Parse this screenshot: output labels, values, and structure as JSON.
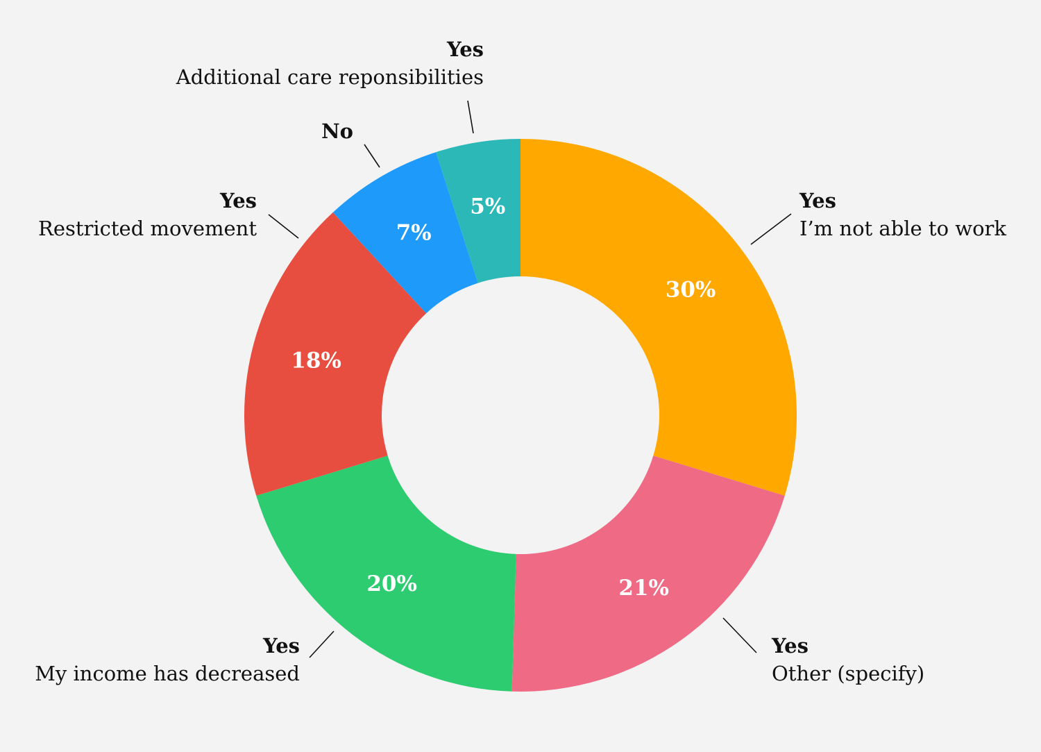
{
  "chart_data": {
    "type": "pie",
    "style": "donut",
    "slices": [
      {
        "head": "Yes",
        "label": "I’m not able to work",
        "value": 30,
        "value_label": "30%",
        "color": "#ffa800"
      },
      {
        "head": "Yes",
        "label": "Other (specify)",
        "value": 21,
        "value_label": "21%",
        "color": "#ef6b85"
      },
      {
        "head": "Yes",
        "label": "My income has decreased",
        "value": 20,
        "value_label": "20%",
        "color": "#2ecc71"
      },
      {
        "head": "Yes",
        "label": "Restricted movement",
        "value": 18,
        "value_label": "18%",
        "color": "#e84e40"
      },
      {
        "head": "No",
        "label": "",
        "value": 7,
        "value_label": "7%",
        "color": "#1e9bfa"
      },
      {
        "head": "Yes",
        "label": "Additional care reponsibilities",
        "value": 5,
        "value_label": "5%",
        "color": "#2db8b8"
      }
    ],
    "start_position": "top",
    "direction": "clockwise"
  }
}
